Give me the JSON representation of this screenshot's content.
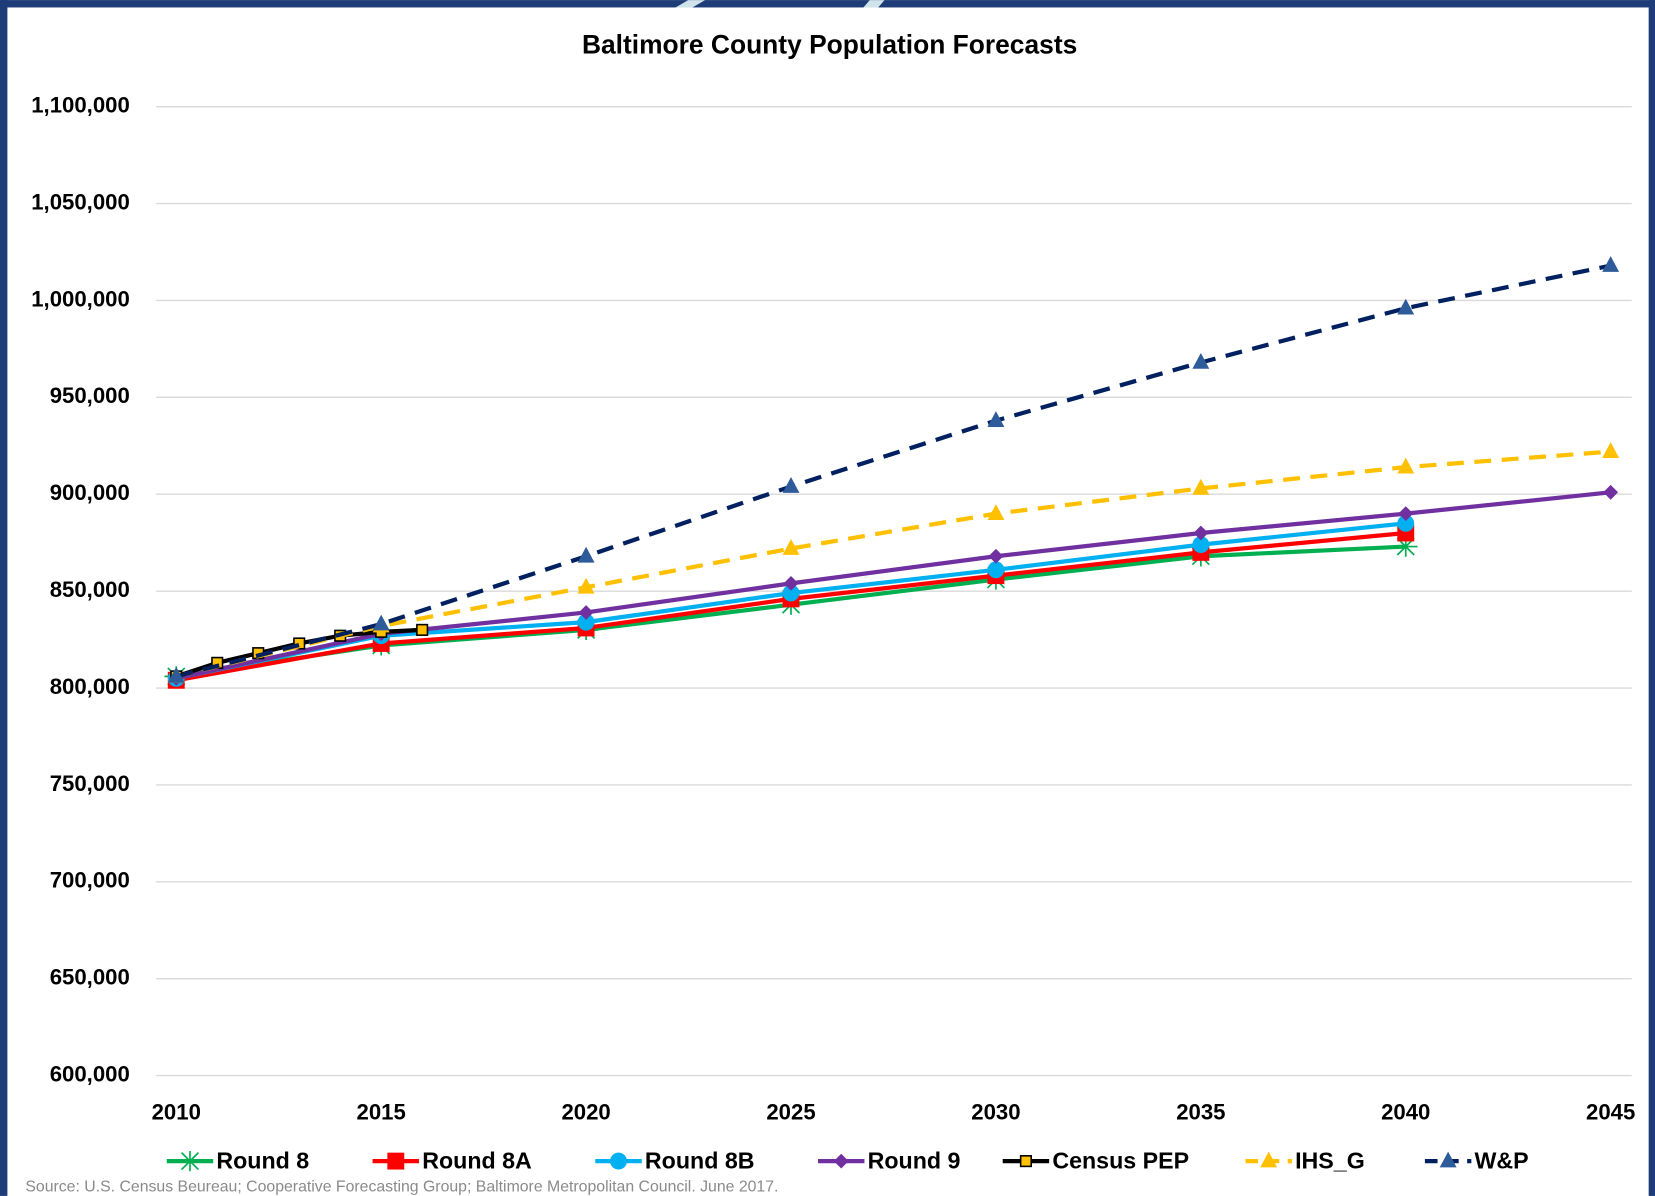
{
  "chart_data": {
    "type": "line",
    "title": "Baltimore County Population Forecasts",
    "source": "Source: U.S. Census Beureau; Cooperative Forecasting Group; Baltimore Metropolitan Council. June 2017.",
    "xlim": [
      2010,
      2045
    ],
    "xticks": [
      2010,
      2015,
      2020,
      2025,
      2030,
      2035,
      2040,
      2045
    ],
    "ylim": [
      600000,
      1100000
    ],
    "yticks": [
      {
        "value": 600000,
        "label": "600,000"
      },
      {
        "value": 650000,
        "label": "650,000"
      },
      {
        "value": 700000,
        "label": "700,000"
      },
      {
        "value": 750000,
        "label": "750,000"
      },
      {
        "value": 800000,
        "label": "800,000"
      },
      {
        "value": 850000,
        "label": "850,000"
      },
      {
        "value": 900000,
        "label": "900,000"
      },
      {
        "value": 950000,
        "label": "950,000"
      },
      {
        "value": 1000000,
        "label": "1,000,000"
      },
      {
        "value": 1050000,
        "label": "1,050,000"
      },
      {
        "value": 1100000,
        "label": "1,100,000"
      }
    ],
    "grid": true,
    "legend": "bottom",
    "series": [
      {
        "name": "Round 8",
        "color": "#00b050",
        "marker": "star",
        "dashed": false,
        "x": [
          2010,
          2015,
          2020,
          2025,
          2030,
          2035,
          2040
        ],
        "values": [
          806000,
          822000,
          830000,
          843000,
          856000,
          868000,
          873000
        ]
      },
      {
        "name": "Round 8A",
        "color": "#ff0000",
        "marker": "square",
        "dashed": false,
        "x": [
          2010,
          2015,
          2020,
          2025,
          2030,
          2035,
          2040
        ],
        "values": [
          804000,
          823000,
          831000,
          846000,
          858000,
          870000,
          880000
        ]
      },
      {
        "name": "Round 8B",
        "color": "#00b0f0",
        "marker": "circle",
        "dashed": false,
        "x": [
          2010,
          2015,
          2020,
          2025,
          2030,
          2035,
          2040
        ],
        "values": [
          805000,
          827000,
          834000,
          849000,
          861000,
          874000,
          885000
        ]
      },
      {
        "name": "Round 9",
        "color": "#7030a0",
        "marker": "diamond",
        "dashed": false,
        "x": [
          2010,
          2015,
          2020,
          2025,
          2030,
          2035,
          2040,
          2045
        ],
        "values": [
          805000,
          828000,
          839000,
          854000,
          868000,
          880000,
          890000,
          901000
        ]
      },
      {
        "name": "Census PEP",
        "color": "#000000",
        "marker": "boxed",
        "dashed": false,
        "x": [
          2010,
          2011,
          2012,
          2013,
          2014,
          2015,
          2016
        ],
        "values": [
          806000,
          813000,
          818000,
          823000,
          827000,
          829000,
          830000
        ]
      },
      {
        "name": "IHS_G",
        "color": "#ffc000",
        "marker": "triangle",
        "dashed": true,
        "x": [
          2010,
          2015,
          2020,
          2025,
          2030,
          2035,
          2040,
          2045
        ],
        "values": [
          806000,
          832000,
          852000,
          872000,
          890000,
          903000,
          914000,
          922000
        ]
      },
      {
        "name": "W&P",
        "color": "#002060",
        "marker": "triangle",
        "marker_color": "#2e5c9a",
        "dashed": true,
        "x": [
          2010,
          2015,
          2020,
          2025,
          2030,
          2035,
          2040,
          2045
        ],
        "values": [
          806000,
          833000,
          868000,
          904000,
          938000,
          968000,
          996000,
          1018000
        ]
      }
    ]
  }
}
